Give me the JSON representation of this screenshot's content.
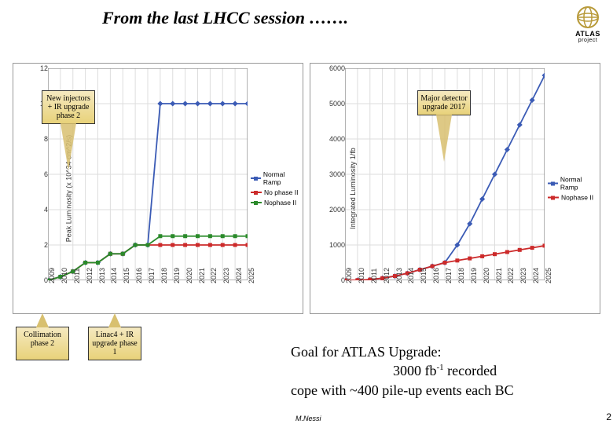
{
  "title": "From the last LHCC session …….",
  "logo": {
    "label": "ATLAS",
    "sub": "project"
  },
  "colors": {
    "series_blue": "#3b5bb5",
    "series_red": "#cc2a2a",
    "series_green": "#2a8a2a",
    "grid": "#dddddd",
    "axis": "#666666"
  },
  "chart_left": {
    "y_label": "Peak Luminosity (x 10^34 cm^2/s)",
    "ylim": [
      0,
      12
    ],
    "ytick_step": 2,
    "x_categories": [
      "2009",
      "2010",
      "2011",
      "2012",
      "2013",
      "2014",
      "2015",
      "2016",
      "2017",
      "2018",
      "2019",
      "2020",
      "2021",
      "2022",
      "2023",
      "2024",
      "2025"
    ],
    "series": [
      {
        "name": "Normal Ramp",
        "color": "#3b5bb5",
        "values": [
          0,
          0.2,
          0.5,
          1,
          1,
          1.5,
          1.5,
          2,
          2,
          10,
          10,
          10,
          10,
          10,
          10,
          10,
          10
        ]
      },
      {
        "name": "No phase II",
        "color": "#cc2a2a",
        "values": [
          0,
          0.2,
          0.5,
          1,
          1,
          1.5,
          1.5,
          2,
          2,
          2,
          2,
          2,
          2,
          2,
          2,
          2,
          2
        ]
      },
      {
        "name": "Nophase II",
        "color": "#2a8a2a",
        "values": [
          0,
          0.2,
          0.5,
          1,
          1,
          1.5,
          1.5,
          2,
          2,
          2.5,
          2.5,
          2.5,
          2.5,
          2.5,
          2.5,
          2.5,
          2.5
        ]
      }
    ],
    "legend": [
      "Normal Ramp",
      "No phase II",
      "Nophase II"
    ],
    "callout": {
      "text": "New injectors + IR upgrade phase 2",
      "arrow_to_x_index": 3
    }
  },
  "chart_right": {
    "y_label": "Integrated Luminosity 1/fb",
    "ylim": [
      0,
      6000
    ],
    "ytick_step": 1000,
    "x_categories": [
      "2009",
      "2010",
      "2011",
      "2012",
      "2013",
      "2014",
      "2015",
      "2016",
      "2017",
      "2018",
      "2019",
      "2020",
      "2021",
      "2022",
      "2023",
      "2024",
      "2025"
    ],
    "series": [
      {
        "name": "Normal Ramp",
        "color": "#3b5bb5",
        "values": [
          0,
          5,
          20,
          60,
          120,
          200,
          300,
          400,
          500,
          1000,
          1600,
          2300,
          3000,
          3700,
          4400,
          5100,
          5800
        ]
      },
      {
        "name": "Nophase II",
        "color": "#cc2a2a",
        "values": [
          0,
          5,
          20,
          60,
          120,
          200,
          300,
          400,
          500,
          560,
          620,
          680,
          740,
          800,
          860,
          920,
          980
        ]
      }
    ],
    "legend": [
      "Normal Ramp",
      "Nophase II"
    ],
    "callout": {
      "text": "Major detector upgrade 2017",
      "arrow_to_x_index": 9
    }
  },
  "lower_callouts": [
    {
      "text": "Collimation phase 2"
    },
    {
      "text": "Linac4 + IR upgrade phase 1"
    }
  ],
  "goal": {
    "line1": "Goal for ATLAS Upgrade:",
    "line2_pre": "3000 fb",
    "line2_sup": "-1",
    "line2_post": " recorded",
    "line3": "cope with ~400 pile-up events each BC"
  },
  "footer_author": "M.Nessi",
  "page_num": "2"
}
